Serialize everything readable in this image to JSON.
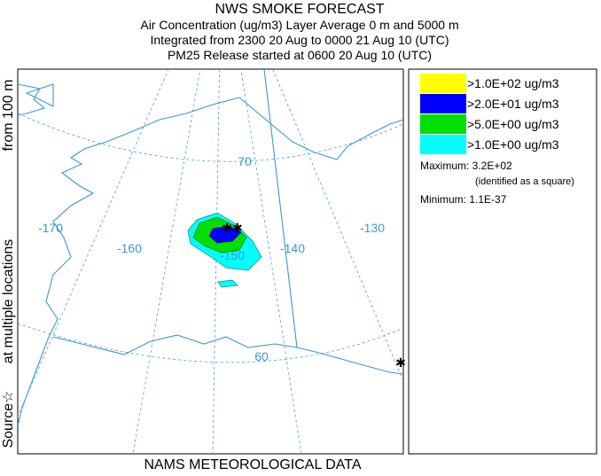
{
  "header": {
    "title": "NWS SMOKE FORECAST",
    "lines": [
      "Air Concentration (ug/m3) Layer Average    0 m and  5000 m",
      "Integrated from 2300 20 Aug to 0000 21 Aug 10 (UTC)",
      "PM25 Release started at 0600 20 Aug 10 (UTC)"
    ]
  },
  "side_label": {
    "source": "Source☆",
    "locations": "at multiple locations",
    "height": "from   100 m"
  },
  "footer": "NAMS METEOROLOGICAL DATA",
  "legend": {
    "items": [
      {
        "label": ">1.0E+02 ug/m3",
        "color": "#ffff00"
      },
      {
        "label": ">2.0E+01 ug/m3",
        "color": "#0000ff"
      },
      {
        "label": ">5.0E+00 ug/m3",
        "color": "#00e000"
      },
      {
        "label": ">1.0E+00 ug/m3",
        "color": "#00ffff"
      }
    ],
    "maximum": "Maximum: 3.2E+02",
    "maximum_note": "(identified as a square)",
    "minimum": "Minimum: 1.1E-37"
  },
  "map": {
    "longitude_labels": [
      "-170",
      "-160",
      "-150",
      "-140",
      "-130"
    ],
    "latitude_labels": [
      "70",
      "60"
    ]
  }
}
